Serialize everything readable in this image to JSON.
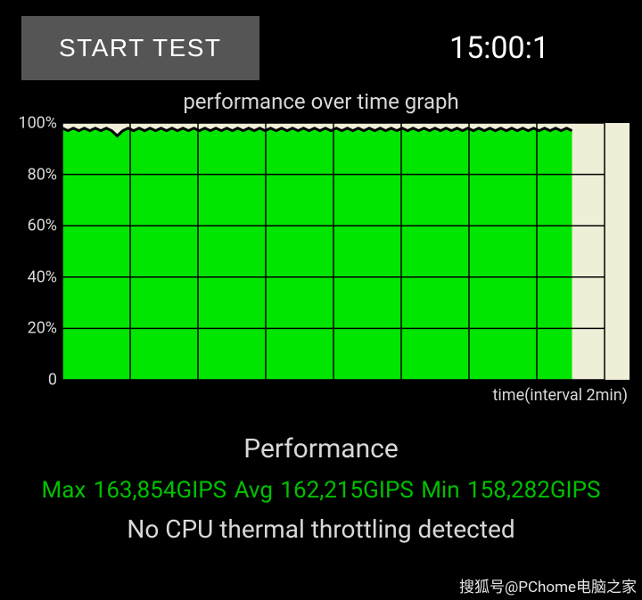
{
  "header": {
    "start_button_label": "START TEST",
    "timer_text": "15:00:1"
  },
  "chart": {
    "type": "area",
    "title": "performance over time graph",
    "x_axis_label": "time(interval 2min)",
    "y_ticks": [
      {
        "value": 100,
        "label": "100%"
      },
      {
        "value": 80,
        "label": "80%"
      },
      {
        "value": 60,
        "label": "60%"
      },
      {
        "value": 40,
        "label": "40%"
      },
      {
        "value": 20,
        "label": "20%"
      },
      {
        "value": 0,
        "label": "0"
      }
    ],
    "ylim": [
      0,
      100
    ],
    "x_divisions": 8,
    "grid_color": "#000000",
    "grid_line_width": 1.5,
    "background_color": "#efefd8",
    "series": [
      {
        "name": "performance",
        "fill_color": "#00e600",
        "line_color": "#000000",
        "line_width": 3,
        "data_x_range": [
          0,
          94
        ],
        "values_pct": [
          98,
          97,
          98,
          97,
          98,
          97,
          98,
          97,
          98,
          97,
          95,
          97,
          98,
          97,
          98,
          97,
          98,
          97,
          98,
          97,
          98,
          97,
          98,
          97,
          98,
          97,
          98,
          97,
          98,
          97,
          98,
          97,
          98,
          97,
          98,
          97,
          98,
          97,
          98,
          97,
          98,
          97,
          98,
          97,
          98,
          97,
          98,
          97,
          98,
          97,
          98,
          97,
          98,
          97,
          98,
          97,
          98,
          97,
          98,
          97,
          98,
          97,
          98,
          97,
          98,
          97,
          98,
          97,
          98,
          97,
          98,
          97,
          98,
          97,
          98,
          97,
          98,
          97,
          98,
          97,
          98,
          97,
          98,
          97,
          98,
          97,
          98,
          97,
          98,
          97,
          98,
          97,
          98,
          97
        ]
      }
    ],
    "plot_inner_width": 608,
    "plot_inner_height": 288,
    "label_fontsize": 18,
    "title_fontsize": 24
  },
  "performance": {
    "heading": "Performance",
    "max_label": "Max",
    "avg_label": "Avg",
    "min_label": "Min",
    "unit": "GIPS",
    "max_value": "163,854",
    "avg_value": "162,215",
    "min_value": "158,282",
    "stats_color": "#00c000",
    "throttle_message": "No CPU thermal throttling detected"
  },
  "watermark": "搜狐号@PChome电脑之家"
}
